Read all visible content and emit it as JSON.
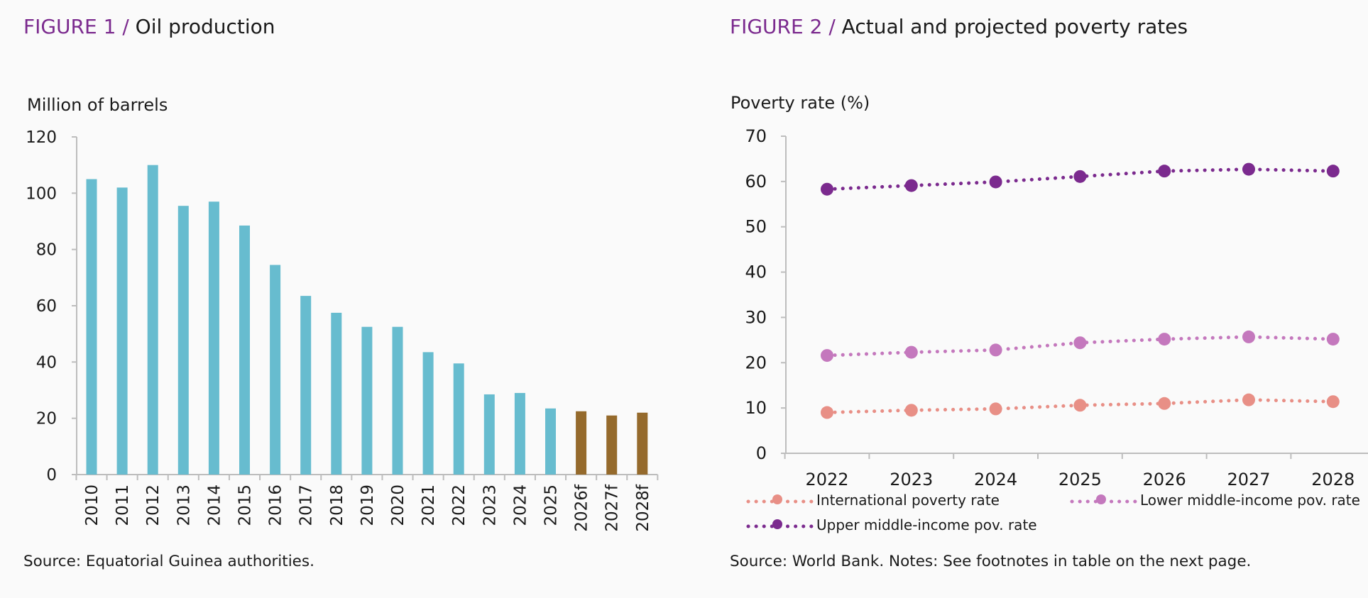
{
  "figure1": {
    "title_num": "FIGURE 1 /",
    "title_name": "Oil production",
    "unit": "Million of barrels",
    "source": "Source: Equatorial Guinea authorities."
  },
  "figure2": {
    "title_num": "FIGURE 2 /",
    "title_name": "Actual and projected poverty rates",
    "unit": "Poverty rate (%)",
    "source": "Source: World Bank. Notes: See footnotes in table on the next page."
  },
  "colors": {
    "actual_bar": "#67bccf",
    "forecast_bar": "#956a2c",
    "intl": "#e88f86",
    "lower": "#c478bd",
    "upper": "#7b2a8e",
    "title_accent": "#7b2a8e"
  },
  "chart_data": [
    {
      "type": "bar",
      "categories": [
        "2010",
        "2011",
        "2012",
        "2013",
        "2014",
        "2015",
        "2016",
        "2017",
        "2018",
        "2019",
        "2020",
        "2021",
        "2022",
        "2023",
        "2024",
        "2025",
        "2026f",
        "2027f",
        "2028f"
      ],
      "values": [
        105,
        102,
        110,
        95.5,
        97,
        88.5,
        74.5,
        63.5,
        57.5,
        52.5,
        52.5,
        43.5,
        39.5,
        28.5,
        29,
        23.5,
        22.5,
        21,
        22
      ],
      "forecast": [
        false,
        false,
        false,
        false,
        false,
        false,
        false,
        false,
        false,
        false,
        false,
        false,
        false,
        false,
        false,
        false,
        true,
        true,
        true
      ],
      "title": "Oil production",
      "ylabel": "Million of barrels",
      "ylim": [
        0,
        120
      ],
      "yticks": [
        0,
        20,
        40,
        60,
        80,
        100,
        120
      ]
    },
    {
      "type": "line",
      "x": [
        "2022",
        "2023",
        "2024",
        "2025",
        "2026",
        "2027",
        "2028"
      ],
      "series": [
        {
          "name": "International poverty rate",
          "values": [
            9,
            9.5,
            9.8,
            10.6,
            11,
            11.8,
            11.4
          ]
        },
        {
          "name": "Lower middle-income pov. rate",
          "values": [
            21.6,
            22.3,
            22.8,
            24.4,
            25.2,
            25.7,
            25.2
          ]
        },
        {
          "name": "Upper middle-income pov. rate",
          "values": [
            58.3,
            59.1,
            59.9,
            61.1,
            62.3,
            62.7,
            62.3
          ]
        }
      ],
      "title": "Actual and projected poverty rates",
      "ylabel": "Poverty rate (%)",
      "ylim": [
        0,
        70
      ],
      "yticks": [
        0,
        10,
        20,
        30,
        40,
        50,
        60,
        70
      ],
      "line_style": "dotted"
    }
  ]
}
